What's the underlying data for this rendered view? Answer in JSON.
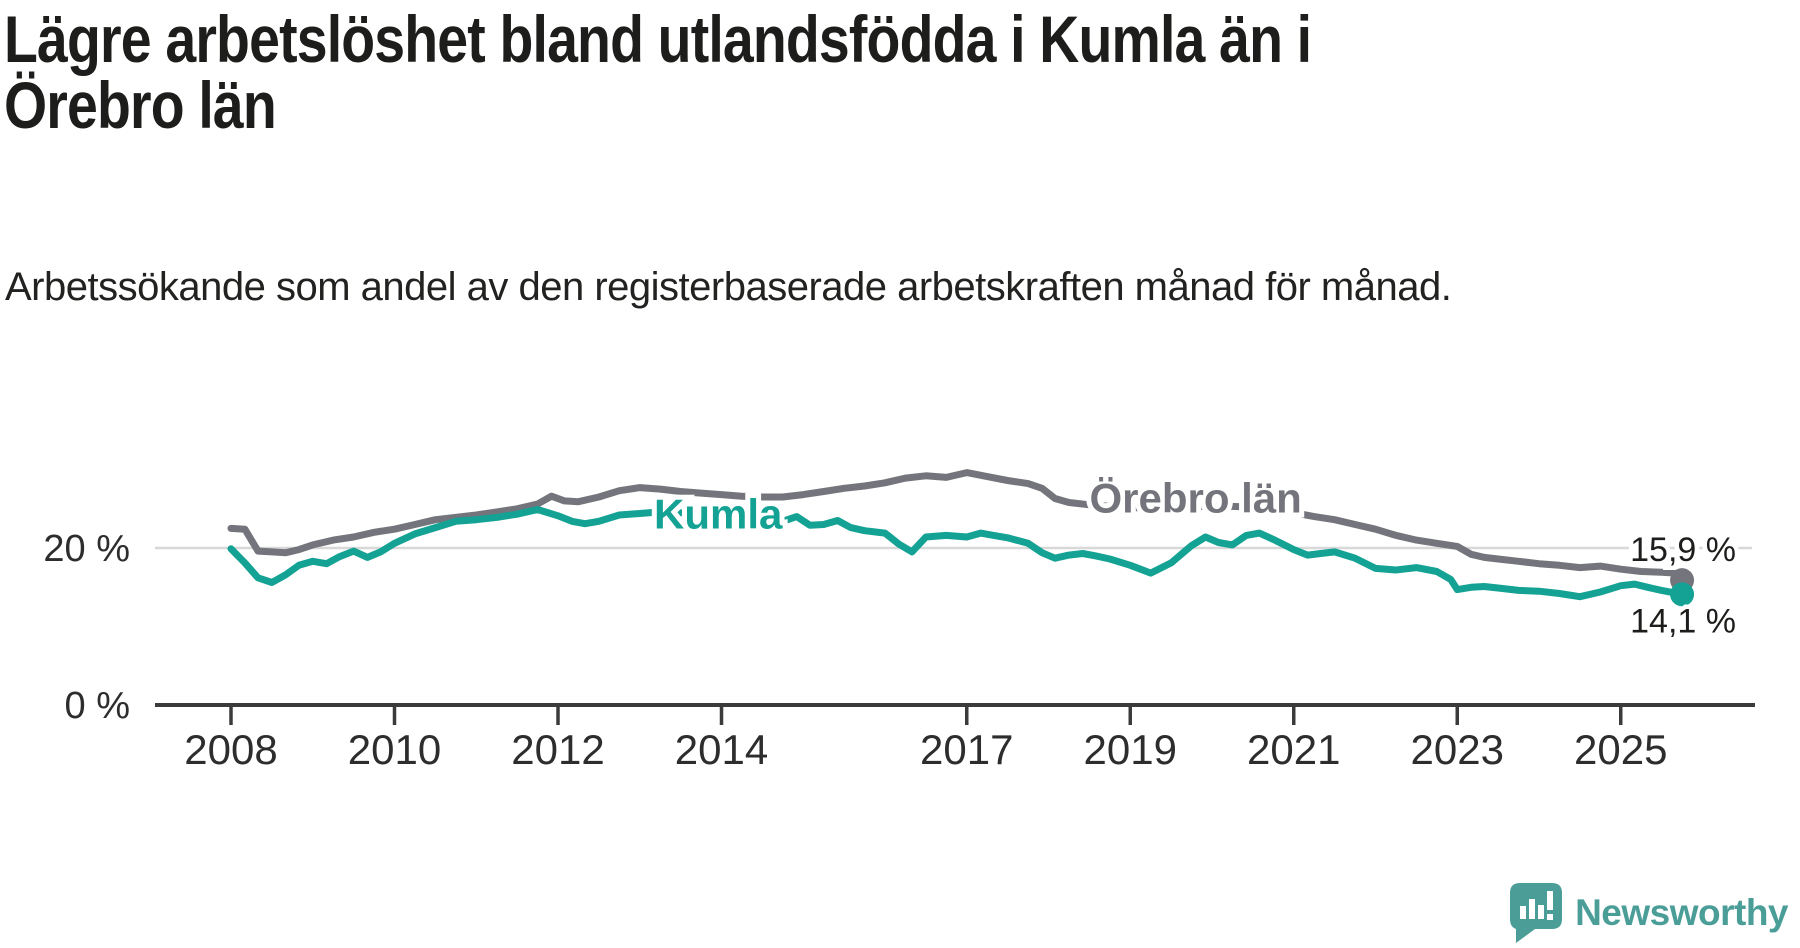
{
  "header": {
    "title": "Lägre arbetslöshet bland utlandsfödda i Kumla än i Örebro län",
    "subtitle": "Arbetssökande som andel av den registerbaserade arbetskraften månad för månad."
  },
  "colors": {
    "kumla": "#13a293",
    "orebro": "#74747c",
    "gridline": "#d8d8d8",
    "axis": "#3b3b3b",
    "text": "#1d1d1b",
    "logo_teal": "#4b9e98"
  },
  "chart_data": {
    "type": "line",
    "title": "Lägre arbetslöshet bland utlandsfödda i Kumla än i Örebro län",
    "subtitle": "Arbetssökande som andel av den registerbaserade arbetskraften månad för månad.",
    "xlabel": "",
    "ylabel": "%",
    "xlim": [
      2007.95,
      2026.1
    ],
    "ylim": [
      0,
      36
    ],
    "x_ticks": [
      2008,
      2010,
      2012,
      2014,
      2017,
      2019,
      2021,
      2023,
      2025
    ],
    "y_ticks": [
      {
        "value": 20,
        "label": "20 %"
      },
      {
        "value": 0,
        "label": "0 %"
      }
    ],
    "gridlines_y": [
      20
    ],
    "legend_position": "inline-labels",
    "series": [
      {
        "name": "Kumla",
        "color": "#13a293",
        "end_value": 14.1,
        "end_label": "14,1 %",
        "end_label_side": "below",
        "label_pos": {
          "year": 2013.96,
          "pct": 22.5
        },
        "points": [
          [
            2008.0,
            19.9
          ],
          [
            2008.17,
            18.1
          ],
          [
            2008.33,
            16.2
          ],
          [
            2008.5,
            15.6
          ],
          [
            2008.67,
            16.6
          ],
          [
            2008.83,
            17.8
          ],
          [
            2009.0,
            18.3
          ],
          [
            2009.17,
            18.0
          ],
          [
            2009.33,
            18.9
          ],
          [
            2009.5,
            19.6
          ],
          [
            2009.67,
            18.8
          ],
          [
            2009.83,
            19.5
          ],
          [
            2010.0,
            20.6
          ],
          [
            2010.25,
            21.8
          ],
          [
            2010.5,
            22.6
          ],
          [
            2010.75,
            23.4
          ],
          [
            2011.0,
            23.6
          ],
          [
            2011.25,
            23.9
          ],
          [
            2011.5,
            24.3
          ],
          [
            2011.75,
            24.9
          ],
          [
            2012.0,
            24.1
          ],
          [
            2012.17,
            23.4
          ],
          [
            2012.33,
            23.1
          ],
          [
            2012.5,
            23.4
          ],
          [
            2012.75,
            24.2
          ],
          [
            2013.0,
            24.4
          ],
          [
            2013.25,
            24.6
          ],
          [
            2013.5,
            24.5
          ],
          [
            2013.75,
            24.2
          ],
          [
            2014.0,
            23.9
          ],
          [
            2014.25,
            23.5
          ],
          [
            2014.5,
            23.2
          ],
          [
            2014.75,
            23.4
          ],
          [
            2014.92,
            24.0
          ],
          [
            2015.08,
            22.9
          ],
          [
            2015.25,
            23.0
          ],
          [
            2015.42,
            23.5
          ],
          [
            2015.58,
            22.6
          ],
          [
            2015.75,
            22.2
          ],
          [
            2016.0,
            21.9
          ],
          [
            2016.17,
            20.5
          ],
          [
            2016.33,
            19.5
          ],
          [
            2016.5,
            21.4
          ],
          [
            2016.75,
            21.6
          ],
          [
            2017.0,
            21.4
          ],
          [
            2017.17,
            21.9
          ],
          [
            2017.33,
            21.6
          ],
          [
            2017.5,
            21.3
          ],
          [
            2017.75,
            20.6
          ],
          [
            2017.92,
            19.4
          ],
          [
            2018.08,
            18.7
          ],
          [
            2018.25,
            19.1
          ],
          [
            2018.42,
            19.3
          ],
          [
            2018.58,
            19.0
          ],
          [
            2018.75,
            18.6
          ],
          [
            2019.0,
            17.8
          ],
          [
            2019.25,
            16.8
          ],
          [
            2019.5,
            18.1
          ],
          [
            2019.75,
            20.3
          ],
          [
            2019.92,
            21.4
          ],
          [
            2020.08,
            20.7
          ],
          [
            2020.25,
            20.4
          ],
          [
            2020.42,
            21.6
          ],
          [
            2020.58,
            21.9
          ],
          [
            2020.75,
            21.1
          ],
          [
            2021.0,
            19.8
          ],
          [
            2021.17,
            19.1
          ],
          [
            2021.33,
            19.3
          ],
          [
            2021.5,
            19.5
          ],
          [
            2021.75,
            18.7
          ],
          [
            2022.0,
            17.4
          ],
          [
            2022.25,
            17.2
          ],
          [
            2022.5,
            17.5
          ],
          [
            2022.75,
            17.0
          ],
          [
            2022.92,
            16.0
          ],
          [
            2023.0,
            14.7
          ],
          [
            2023.17,
            15.0
          ],
          [
            2023.33,
            15.1
          ],
          [
            2023.5,
            14.9
          ],
          [
            2023.75,
            14.6
          ],
          [
            2024.0,
            14.5
          ],
          [
            2024.25,
            14.2
          ],
          [
            2024.5,
            13.8
          ],
          [
            2024.75,
            14.4
          ],
          [
            2025.0,
            15.2
          ],
          [
            2025.17,
            15.4
          ],
          [
            2025.33,
            15.0
          ],
          [
            2025.5,
            14.6
          ],
          [
            2025.75,
            14.1
          ]
        ]
      },
      {
        "name": "Örebro län",
        "color": "#74747c",
        "end_value": 15.9,
        "end_label": "15,9 %",
        "end_label_side": "above",
        "label_pos": {
          "year": 2019.8,
          "pct": 24.5
        },
        "points": [
          [
            2008.0,
            22.5
          ],
          [
            2008.17,
            22.4
          ],
          [
            2008.33,
            19.6
          ],
          [
            2008.5,
            19.5
          ],
          [
            2008.67,
            19.4
          ],
          [
            2008.83,
            19.8
          ],
          [
            2009.0,
            20.4
          ],
          [
            2009.25,
            21.0
          ],
          [
            2009.5,
            21.4
          ],
          [
            2009.75,
            22.0
          ],
          [
            2010.0,
            22.4
          ],
          [
            2010.25,
            23.0
          ],
          [
            2010.5,
            23.6
          ],
          [
            2010.75,
            23.9
          ],
          [
            2011.0,
            24.2
          ],
          [
            2011.25,
            24.6
          ],
          [
            2011.5,
            25.0
          ],
          [
            2011.75,
            25.6
          ],
          [
            2011.92,
            26.6
          ],
          [
            2012.08,
            26.0
          ],
          [
            2012.25,
            25.9
          ],
          [
            2012.5,
            26.5
          ],
          [
            2012.75,
            27.3
          ],
          [
            2013.0,
            27.7
          ],
          [
            2013.25,
            27.5
          ],
          [
            2013.5,
            27.2
          ],
          [
            2013.75,
            27.0
          ],
          [
            2014.0,
            26.8
          ],
          [
            2014.25,
            26.6
          ],
          [
            2014.5,
            26.5
          ],
          [
            2014.75,
            26.5
          ],
          [
            2015.0,
            26.8
          ],
          [
            2015.25,
            27.2
          ],
          [
            2015.5,
            27.6
          ],
          [
            2015.75,
            27.9
          ],
          [
            2016.0,
            28.3
          ],
          [
            2016.25,
            28.9
          ],
          [
            2016.5,
            29.2
          ],
          [
            2016.75,
            29.0
          ],
          [
            2017.0,
            29.6
          ],
          [
            2017.25,
            29.1
          ],
          [
            2017.5,
            28.6
          ],
          [
            2017.75,
            28.2
          ],
          [
            2017.92,
            27.6
          ],
          [
            2018.08,
            26.3
          ],
          [
            2018.25,
            25.8
          ],
          [
            2018.5,
            25.5
          ],
          [
            2018.75,
            25.3
          ],
          [
            2019.0,
            25.2
          ],
          [
            2019.25,
            25.0
          ],
          [
            2019.5,
            25.0
          ],
          [
            2019.75,
            25.2
          ],
          [
            2020.0,
            25.4
          ],
          [
            2020.25,
            25.3
          ],
          [
            2020.5,
            25.2
          ],
          [
            2020.75,
            24.8
          ],
          [
            2021.0,
            24.5
          ],
          [
            2021.25,
            24.0
          ],
          [
            2021.5,
            23.6
          ],
          [
            2021.75,
            23.0
          ],
          [
            2022.0,
            22.4
          ],
          [
            2022.25,
            21.6
          ],
          [
            2022.5,
            21.0
          ],
          [
            2022.75,
            20.6
          ],
          [
            2023.0,
            20.2
          ],
          [
            2023.17,
            19.2
          ],
          [
            2023.33,
            18.8
          ],
          [
            2023.5,
            18.6
          ],
          [
            2023.75,
            18.3
          ],
          [
            2024.0,
            18.0
          ],
          [
            2024.25,
            17.8
          ],
          [
            2024.5,
            17.5
          ],
          [
            2024.75,
            17.7
          ],
          [
            2025.0,
            17.3
          ],
          [
            2025.25,
            17.0
          ],
          [
            2025.5,
            16.9
          ],
          [
            2025.67,
            16.8
          ],
          [
            2025.75,
            15.9
          ]
        ]
      }
    ]
  },
  "footer": {
    "brand": "Newsworthy"
  }
}
